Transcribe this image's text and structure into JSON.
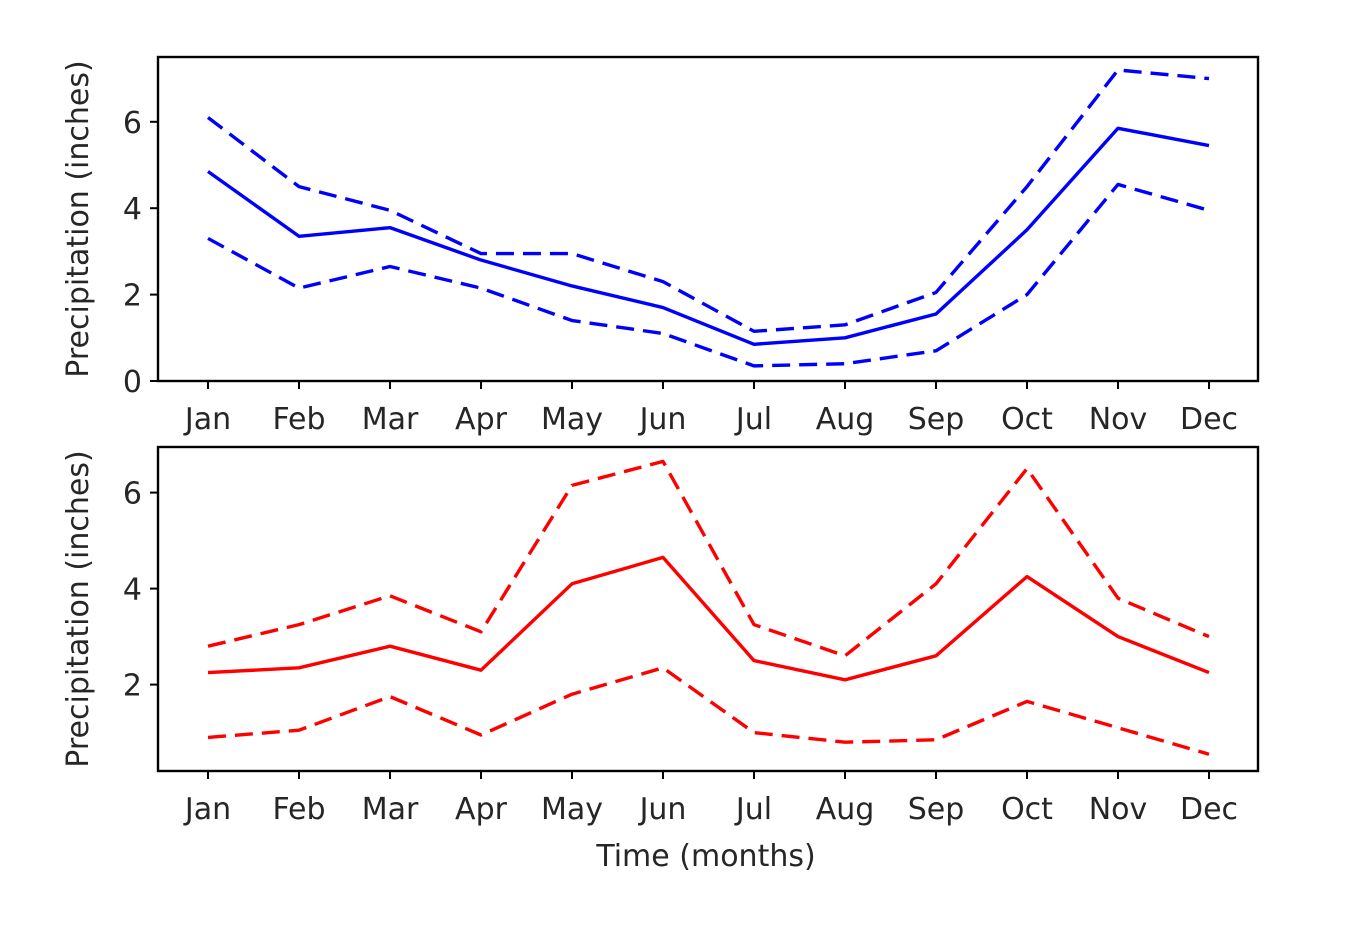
{
  "colors": {
    "top": "#0000ff",
    "bottom": "#ff0000"
  },
  "chart_data": [
    {
      "type": "line",
      "categories": [
        "Jan",
        "Feb",
        "Mar",
        "Apr",
        "May",
        "Jun",
        "Jul",
        "Aug",
        "Sep",
        "Oct",
        "Nov",
        "Dec"
      ],
      "xlabel": "",
      "ylabel": "Precipitation (inches)",
      "ylim": [
        0,
        7.5
      ],
      "yticks": [
        0,
        2,
        4,
        6
      ],
      "grid": false,
      "series": [
        {
          "style": "dashed",
          "values": [
            6.1,
            4.5,
            3.95,
            2.95,
            2.95,
            2.3,
            1.15,
            1.3,
            2.05,
            4.5,
            7.2,
            7.0
          ]
        },
        {
          "style": "solid",
          "values": [
            4.85,
            3.35,
            3.55,
            2.8,
            2.2,
            1.7,
            0.85,
            1.0,
            1.55,
            3.5,
            5.85,
            5.45
          ]
        },
        {
          "style": "dashed",
          "values": [
            3.3,
            2.15,
            2.65,
            2.15,
            1.4,
            1.1,
            0.35,
            0.4,
            0.7,
            2.0,
            4.55,
            3.95
          ]
        }
      ]
    },
    {
      "type": "line",
      "categories": [
        "Jan",
        "Feb",
        "Mar",
        "Apr",
        "May",
        "Jun",
        "Jul",
        "Aug",
        "Sep",
        "Oct",
        "Nov",
        "Dec"
      ],
      "xlabel": "Time (months)",
      "ylabel": "Precipitation (inches)",
      "ylim": [
        0.2,
        6.95
      ],
      "yticks": [
        2,
        4,
        6
      ],
      "grid": false,
      "series": [
        {
          "style": "dashed",
          "values": [
            2.8,
            3.25,
            3.85,
            3.1,
            6.15,
            6.65,
            3.25,
            2.6,
            4.1,
            6.5,
            3.8,
            3.0
          ]
        },
        {
          "style": "solid",
          "values": [
            2.25,
            2.35,
            2.8,
            2.3,
            4.1,
            4.65,
            2.5,
            2.1,
            2.6,
            4.25,
            3.0,
            2.25
          ]
        },
        {
          "style": "dashed",
          "values": [
            0.9,
            1.05,
            1.75,
            0.95,
            1.8,
            2.35,
            1.0,
            0.8,
            0.85,
            1.65,
            1.1,
            0.55
          ]
        }
      ]
    }
  ]
}
